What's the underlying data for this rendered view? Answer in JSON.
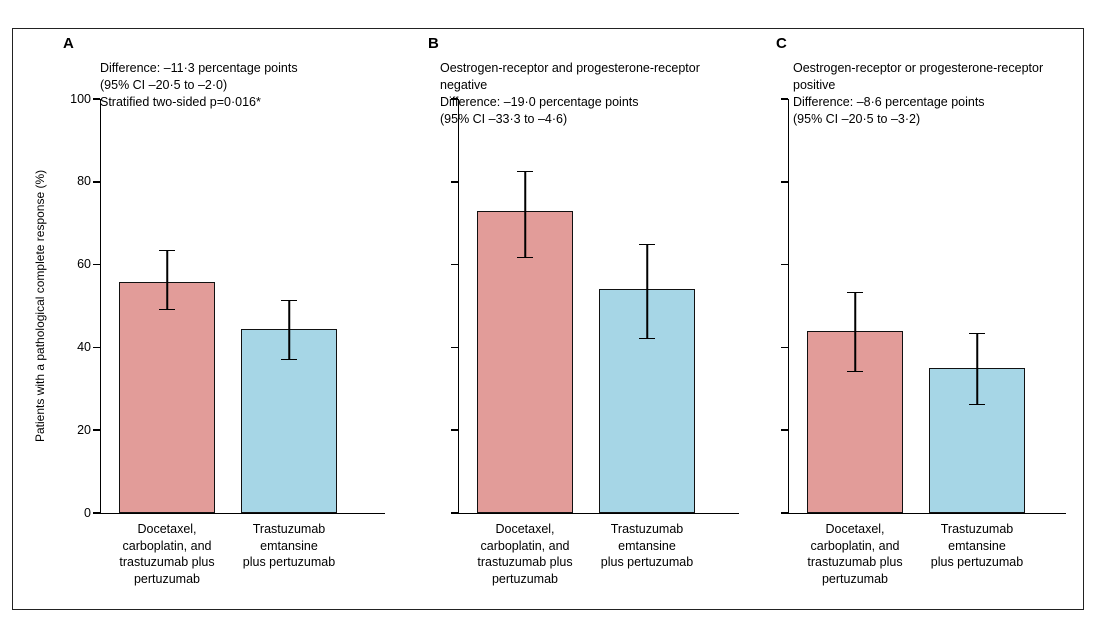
{
  "figure": {
    "ylabel": "Patients with a pathological complete response (%)",
    "yticks": [
      0,
      20,
      40,
      60,
      80,
      100
    ],
    "bar_colors": [
      "#e29c99",
      "#a6d6e6"
    ],
    "axis_color": "#000000"
  },
  "chart_data": [
    {
      "type": "bar",
      "panel": "A",
      "annotation": "Difference: –11·3 percentage points\n(95% CI –20·5 to –2·0)\nStratified two-sided p=0·016*",
      "categories": [
        "Docetaxel,\ncarboplatin, and\ntrastuzumab plus\npertuzumab",
        "Trastuzumab\nemtansine\nplus pertuzumab"
      ],
      "values": [
        55.7,
        44.4
      ],
      "ci": [
        [
          49.0,
          63.5
        ],
        [
          37.0,
          51.5
        ]
      ],
      "ylabel": "Patients with a pathological complete response (%)",
      "ylim": [
        0,
        100
      ]
    },
    {
      "type": "bar",
      "panel": "B",
      "annotation": "Oestrogen-receptor and progesterone-receptor\nnegative\nDifference: –19·0 percentage points\n(95% CI –33·3 to –4·6)",
      "categories": [
        "Docetaxel,\ncarboplatin, and\ntrastuzumab plus\npertuzumab",
        "Trastuzumab\nemtansine\nplus pertuzumab"
      ],
      "values": [
        73.0,
        54.0
      ],
      "ci": [
        [
          61.5,
          82.5
        ],
        [
          42.0,
          65.0
        ]
      ],
      "ylim": [
        0,
        100
      ]
    },
    {
      "type": "bar",
      "panel": "C",
      "annotation": "Oestrogen-receptor or progesterone-receptor\npositive\nDifference: –8·6 percentage points\n(95% CI –20·5 to –3·2)",
      "categories": [
        "Docetaxel,\ncarboplatin, and\ntrastuzumab plus\npertuzumab",
        "Trastuzumab\nemtansine\nplus pertuzumab"
      ],
      "values": [
        44.0,
        35.0
      ],
      "ci": [
        [
          34.0,
          53.5
        ],
        [
          26.0,
          43.5
        ]
      ],
      "ylim": [
        0,
        100
      ]
    }
  ]
}
